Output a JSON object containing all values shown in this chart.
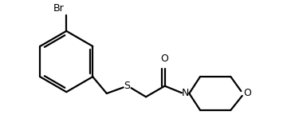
{
  "bg_color": "#ffffff",
  "line_color": "#000000",
  "line_width": 1.6,
  "font_size": 8.5,
  "figsize": [
    3.7,
    1.54
  ],
  "dpi": 100,
  "xlim": [
    0,
    10
  ],
  "ylim": [
    0,
    4.2
  ]
}
